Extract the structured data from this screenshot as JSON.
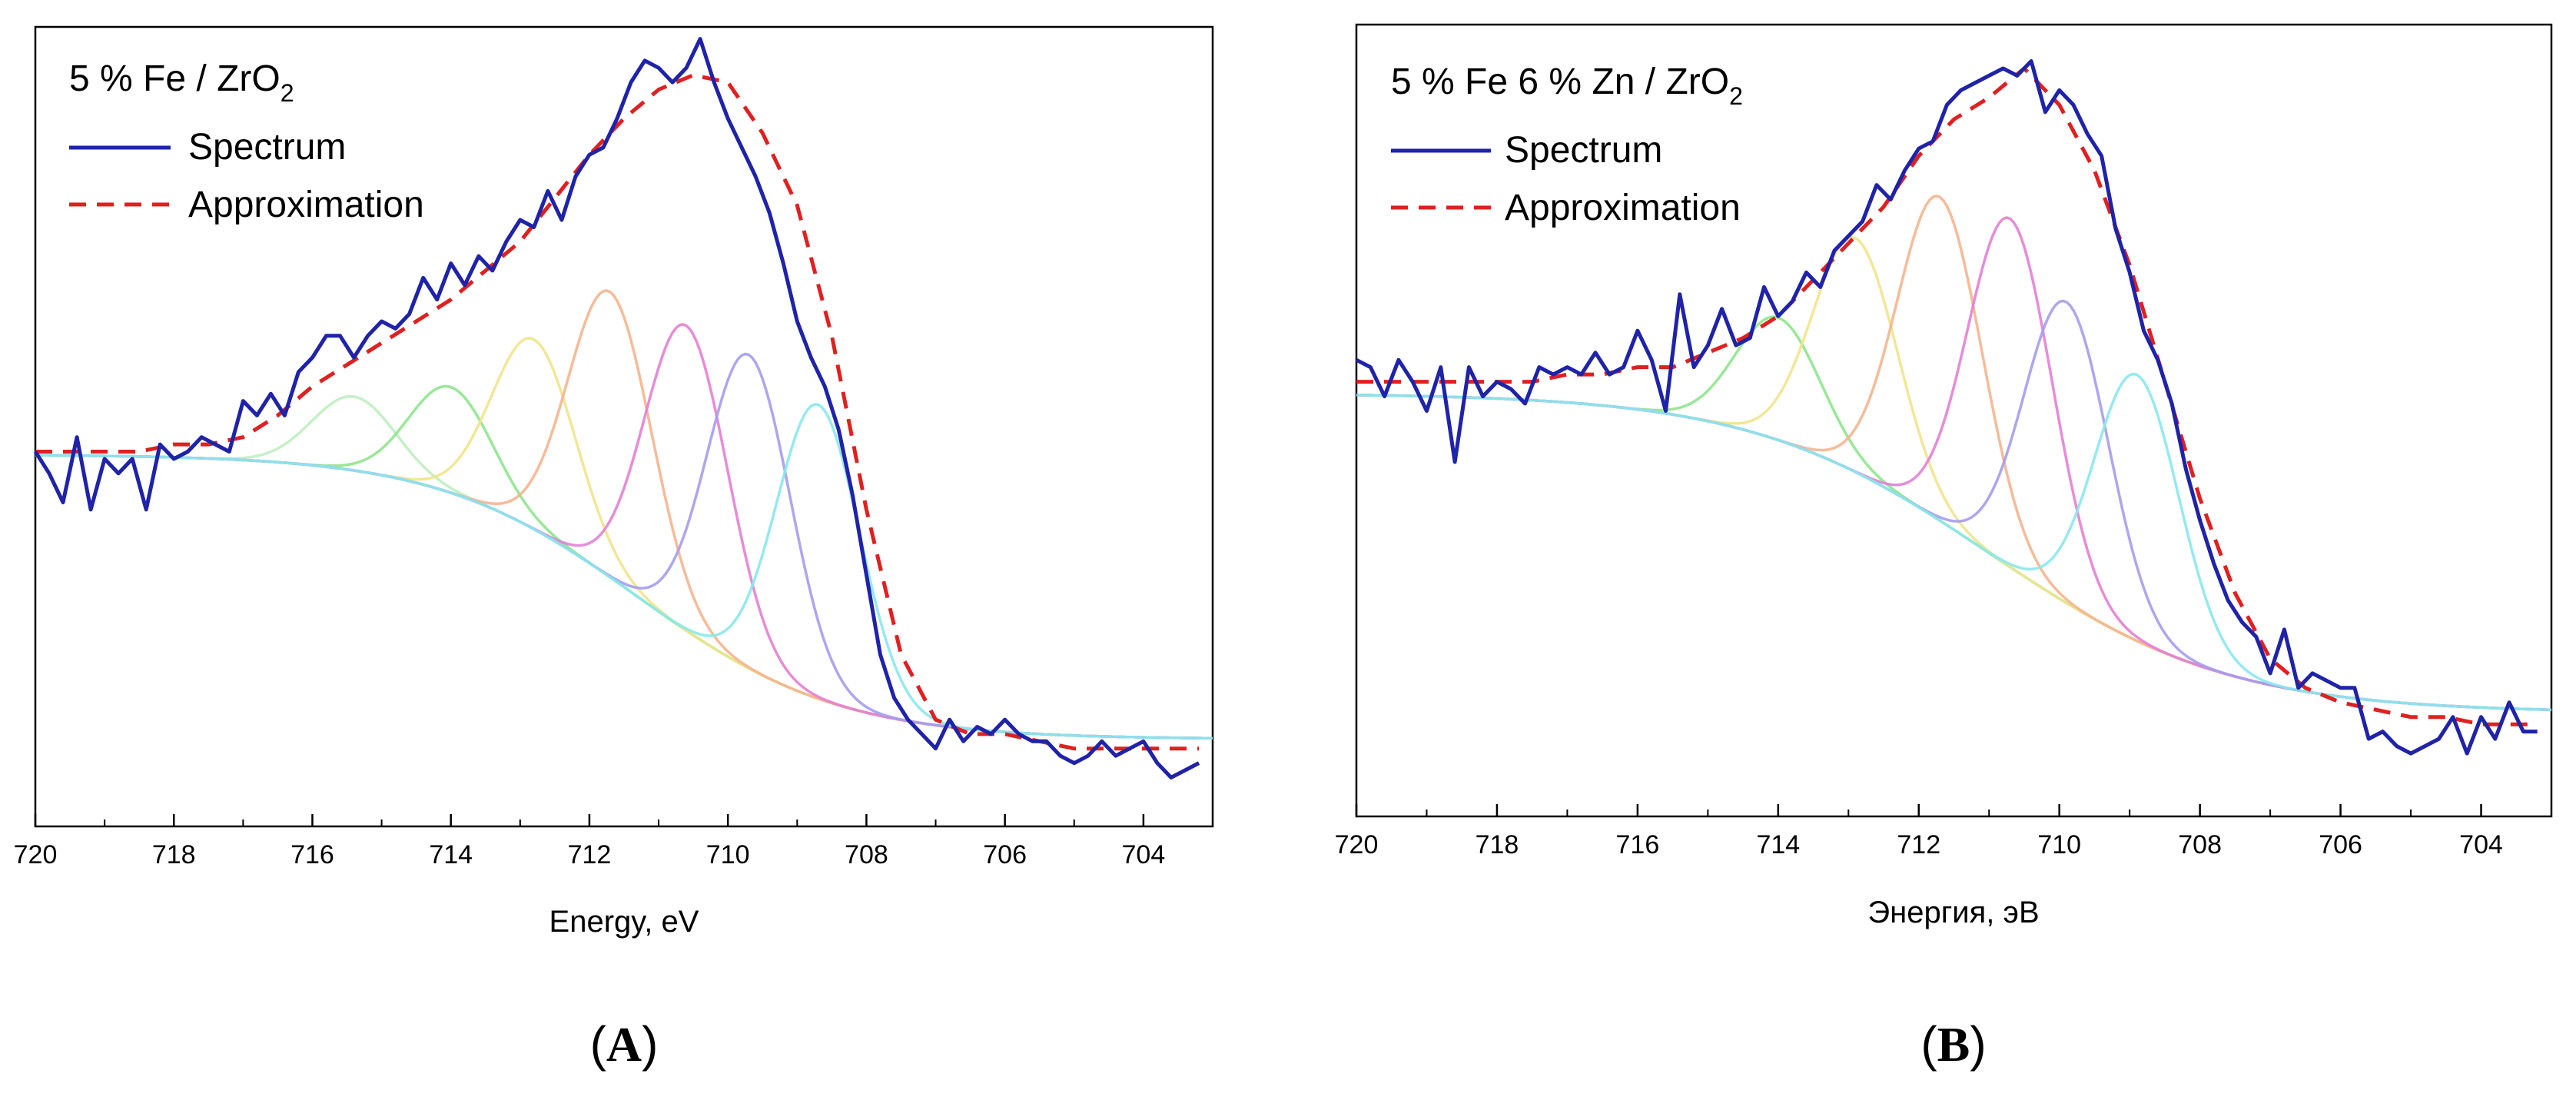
{
  "chart_data": [
    {
      "type": "line",
      "panel_label": "A",
      "title_main": "5 % Fe / ZrO",
      "title_sub": "2",
      "xlabel": "Energy, eV",
      "ylabel": "",
      "xlim": [
        720,
        703
      ],
      "ylim": [
        0,
        1
      ],
      "x_ticks": [
        720,
        718,
        716,
        714,
        712,
        710,
        708,
        706,
        704
      ],
      "legend": [
        {
          "label": "Spectrum",
          "style": "solid",
          "color": "#1f23a8"
        },
        {
          "label": "Approximation",
          "style": "dashed",
          "color": "#e02020"
        }
      ],
      "baseline": {
        "top": 0.436,
        "bottom": 0.043,
        "center": 711.3,
        "width": 1.45
      },
      "components": [
        {
          "center": 715.4,
          "amp": 0.102,
          "sigma": 0.6,
          "color": "#bfeec0"
        },
        {
          "center": 714.0,
          "amp": 0.146,
          "sigma": 0.6,
          "color": "#8ee68c"
        },
        {
          "center": 712.8,
          "amp": 0.262,
          "sigma": 0.6,
          "color": "#f0e48c"
        },
        {
          "center": 711.7,
          "amp": 0.394,
          "sigma": 0.6,
          "color": "#f6b48e"
        },
        {
          "center": 710.6,
          "amp": 0.421,
          "sigma": 0.6,
          "color": "#e480d4"
        },
        {
          "center": 709.7,
          "amp": 0.433,
          "sigma": 0.6,
          "color": "#a59cee"
        },
        {
          "center": 708.7,
          "amp": 0.406,
          "sigma": 0.6,
          "color": "#8ae8ec"
        }
      ],
      "spectrum": {
        "x": [
          720.0,
          719.8,
          719.6,
          719.4,
          719.2,
          719.0,
          718.8,
          718.6,
          718.4,
          718.2,
          718.0,
          717.8,
          717.6,
          717.4,
          717.2,
          717.0,
          716.8,
          716.6,
          716.4,
          716.2,
          716.0,
          715.8,
          715.6,
          715.4,
          715.2,
          715.0,
          714.8,
          714.6,
          714.4,
          714.2,
          714.0,
          713.8,
          713.6,
          713.4,
          713.2,
          713.0,
          712.8,
          712.6,
          712.4,
          712.2,
          712.0,
          711.8,
          711.6,
          711.4,
          711.2,
          711.0,
          710.8,
          710.6,
          710.4,
          710.2,
          710.0,
          709.8,
          709.6,
          709.4,
          709.2,
          709.0,
          708.8,
          708.6,
          708.4,
          708.2,
          708.0,
          707.8,
          707.6,
          707.4,
          707.2,
          707.0,
          706.8,
          706.6,
          706.4,
          706.2,
          706.0,
          705.8,
          705.6,
          705.4,
          705.2,
          705.0,
          704.8,
          704.6,
          704.4,
          704.2,
          704.0,
          703.8,
          703.6,
          703.4,
          703.2
        ],
        "y": [
          0.44,
          0.41,
          0.37,
          0.46,
          0.36,
          0.43,
          0.41,
          0.43,
          0.36,
          0.45,
          0.43,
          0.44,
          0.46,
          0.45,
          0.44,
          0.51,
          0.49,
          0.52,
          0.49,
          0.55,
          0.57,
          0.6,
          0.6,
          0.57,
          0.6,
          0.62,
          0.61,
          0.63,
          0.68,
          0.65,
          0.7,
          0.67,
          0.71,
          0.69,
          0.73,
          0.76,
          0.75,
          0.8,
          0.76,
          0.82,
          0.85,
          0.86,
          0.9,
          0.95,
          0.98,
          0.97,
          0.95,
          0.97,
          1.01,
          0.95,
          0.9,
          0.86,
          0.82,
          0.77,
          0.7,
          0.62,
          0.57,
          0.53,
          0.47,
          0.38,
          0.27,
          0.16,
          0.1,
          0.07,
          0.05,
          0.03,
          0.07,
          0.04,
          0.06,
          0.05,
          0.07,
          0.05,
          0.04,
          0.04,
          0.02,
          0.01,
          0.02,
          0.04,
          0.02,
          0.03,
          0.04,
          0.01,
          -0.01,
          0.0,
          0.01
        ]
      },
      "approximation": {
        "x": [
          720.0,
          719.5,
          719.0,
          718.5,
          718.0,
          717.5,
          717.0,
          716.5,
          716.0,
          715.5,
          715.0,
          714.5,
          714.0,
          713.5,
          713.0,
          712.5,
          712.0,
          711.5,
          711.0,
          710.5,
          710.0,
          709.5,
          709.0,
          708.5,
          708.0,
          707.5,
          707.0,
          706.5,
          706.0,
          705.5,
          705.0,
          704.5,
          704.0,
          703.5,
          703.2
        ],
        "y": [
          0.44,
          0.44,
          0.44,
          0.44,
          0.45,
          0.45,
          0.46,
          0.49,
          0.53,
          0.56,
          0.59,
          0.62,
          0.65,
          0.69,
          0.73,
          0.79,
          0.85,
          0.9,
          0.94,
          0.96,
          0.95,
          0.88,
          0.78,
          0.6,
          0.36,
          0.16,
          0.07,
          0.05,
          0.05,
          0.04,
          0.03,
          0.03,
          0.03,
          0.03,
          0.03
        ]
      }
    },
    {
      "type": "line",
      "panel_label": "B",
      "title_main": "5 % Fe 6 % Zn / ZrO",
      "title_sub": "2",
      "xlabel": "Энергия, эВ",
      "ylabel": "",
      "xlim": [
        720,
        703
      ],
      "ylim": [
        0,
        1
      ],
      "x_ticks": [
        720,
        718,
        716,
        714,
        712,
        710,
        708,
        706,
        704
      ],
      "legend": [
        {
          "label": "Spectrum",
          "style": "solid",
          "color": "#1f23a8"
        },
        {
          "label": "Approximation",
          "style": "dashed",
          "color": "#e02020"
        }
      ],
      "baseline": {
        "top": 0.534,
        "bottom": 0.096,
        "center": 711.0,
        "width": 1.7
      },
      "components": [
        {
          "center": 714.0,
          "amp": 0.168,
          "sigma": 0.6,
          "color": "#8ee68c"
        },
        {
          "center": 712.9,
          "amp": 0.321,
          "sigma": 0.6,
          "color": "#f0e48c"
        },
        {
          "center": 711.7,
          "amp": 0.444,
          "sigma": 0.6,
          "color": "#f6b48e"
        },
        {
          "center": 710.7,
          "amp": 0.478,
          "sigma": 0.6,
          "color": "#e480d4"
        },
        {
          "center": 709.9,
          "amp": 0.413,
          "sigma": 0.6,
          "color": "#a59cee"
        },
        {
          "center": 708.9,
          "amp": 0.365,
          "sigma": 0.6,
          "color": "#8ae8ec"
        }
      ],
      "spectrum": {
        "x": [
          720.0,
          719.8,
          719.6,
          719.4,
          719.2,
          719.0,
          718.8,
          718.6,
          718.4,
          718.2,
          718.0,
          717.8,
          717.6,
          717.4,
          717.2,
          717.0,
          716.8,
          716.6,
          716.4,
          716.2,
          716.0,
          715.8,
          715.6,
          715.4,
          715.2,
          715.0,
          714.8,
          714.6,
          714.4,
          714.2,
          714.0,
          713.8,
          713.6,
          713.4,
          713.2,
          713.0,
          712.8,
          712.6,
          712.4,
          712.2,
          712.0,
          711.8,
          711.6,
          711.4,
          711.2,
          711.0,
          710.8,
          710.6,
          710.4,
          710.2,
          710.0,
          709.8,
          709.6,
          709.4,
          709.2,
          709.0,
          708.8,
          708.6,
          708.4,
          708.2,
          708.0,
          707.8,
          707.6,
          707.4,
          707.2,
          707.0,
          706.8,
          706.6,
          706.4,
          706.2,
          706.0,
          705.8,
          705.6,
          705.4,
          705.2,
          705.0,
          704.8,
          704.6,
          704.4,
          704.2,
          704.0,
          703.8,
          703.6,
          703.4,
          703.2
        ],
        "y": [
          0.58,
          0.57,
          0.53,
          0.58,
          0.55,
          0.51,
          0.57,
          0.44,
          0.57,
          0.53,
          0.55,
          0.54,
          0.52,
          0.57,
          0.56,
          0.57,
          0.56,
          0.59,
          0.56,
          0.57,
          0.62,
          0.58,
          0.51,
          0.67,
          0.57,
          0.6,
          0.65,
          0.6,
          0.61,
          0.68,
          0.64,
          0.66,
          0.7,
          0.68,
          0.73,
          0.75,
          0.77,
          0.82,
          0.8,
          0.84,
          0.87,
          0.88,
          0.93,
          0.95,
          0.96,
          0.97,
          0.98,
          0.97,
          0.99,
          0.92,
          0.95,
          0.93,
          0.89,
          0.86,
          0.76,
          0.7,
          0.62,
          0.58,
          0.52,
          0.43,
          0.36,
          0.3,
          0.25,
          0.22,
          0.2,
          0.15,
          0.21,
          0.13,
          0.15,
          0.14,
          0.13,
          0.13,
          0.06,
          0.07,
          0.05,
          0.04,
          0.05,
          0.06,
          0.09,
          0.04,
          0.09,
          0.06,
          0.11,
          0.07,
          0.07
        ]
      },
      "approximation": {
        "x": [
          720.0,
          719.5,
          719.0,
          718.5,
          718.0,
          717.5,
          717.0,
          716.5,
          716.0,
          715.5,
          715.0,
          714.5,
          714.0,
          713.5,
          713.0,
          712.5,
          712.0,
          711.5,
          711.0,
          710.5,
          710.0,
          709.5,
          709.0,
          708.5,
          708.0,
          707.5,
          707.0,
          706.5,
          706.0,
          705.5,
          705.0,
          704.5,
          704.0,
          703.5,
          703.2
        ],
        "y": [
          0.55,
          0.55,
          0.55,
          0.55,
          0.55,
          0.55,
          0.56,
          0.56,
          0.57,
          0.57,
          0.59,
          0.61,
          0.64,
          0.69,
          0.74,
          0.79,
          0.86,
          0.91,
          0.94,
          0.98,
          0.93,
          0.84,
          0.71,
          0.55,
          0.39,
          0.26,
          0.17,
          0.13,
          0.11,
          0.1,
          0.09,
          0.09,
          0.08,
          0.08,
          0.08
        ]
      }
    }
  ]
}
